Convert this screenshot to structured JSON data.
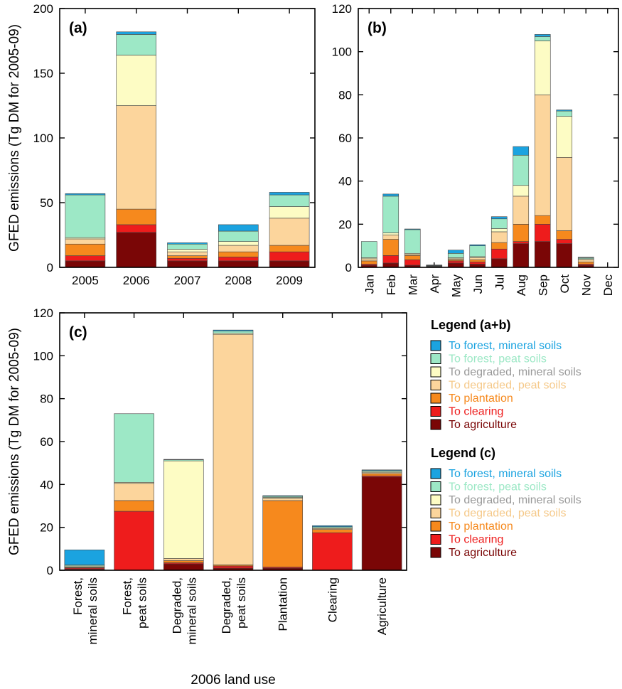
{
  "stack_order": [
    "To agriculture",
    "To clearing",
    "To plantation",
    "To degraded, peat soils",
    "To degraded, mineral soils",
    "To forest, peat soils",
    "To forest, mineral soils"
  ],
  "colors": {
    "To forest, mineral soils": "#1ba3e0",
    "To forest, peat soils": "#9de8c6",
    "To degraded, mineral soils": "#fdfcc4",
    "To degraded, peat soils": "#fcd59c",
    "To plantation": "#f6891d",
    "To clearing": "#ee1c1c",
    "To agriculture": "#7a0606"
  },
  "legend_text_colors": {
    "To forest, mineral soils": "#1ba3e0",
    "To forest, peat soils": "#9de8c6",
    "To degraded, mineral soils": "#999999",
    "To degraded, peat soils": "#f5c98a",
    "To plantation": "#f6891d",
    "To clearing": "#ee1c1c",
    "To agriculture": "#7a0606"
  },
  "legends": [
    {
      "title": "Legend (a+b)",
      "entries": [
        "To forest, mineral soils",
        "To forest, peat soils",
        "To degraded, mineral soils",
        "To degraded, peat soils",
        "To plantation",
        "To clearing",
        "To agriculture"
      ]
    },
    {
      "title": "Legend (c)",
      "entries": [
        "To forest, mineral soils",
        "To forest, peat soils",
        "To degraded, mineral soils",
        "To degraded, peat soils",
        "To plantation",
        "To clearing",
        "To agriculture"
      ]
    }
  ],
  "chart_data": [
    {
      "type": "bar",
      "stacked": true,
      "panel_label": "(a)",
      "ylabel": "GFED emissions (Tg DM for 2005-09)",
      "xlabel": "",
      "ylim": [
        0,
        200
      ],
      "yticks": [
        0,
        50,
        100,
        150,
        200
      ],
      "categories": [
        "2005",
        "2006",
        "2007",
        "2008",
        "2009"
      ],
      "series": [
        {
          "name": "To agriculture",
          "values": [
            5,
            27,
            5,
            5,
            5
          ]
        },
        {
          "name": "To clearing",
          "values": [
            4,
            6,
            2,
            3,
            7
          ]
        },
        {
          "name": "To plantation",
          "values": [
            9,
            12,
            2,
            4,
            5
          ]
        },
        {
          "name": "To degraded, peat soils",
          "values": [
            4,
            80,
            3,
            5,
            21
          ]
        },
        {
          "name": "To degraded, mineral soils",
          "values": [
            1,
            39,
            2,
            3,
            9
          ]
        },
        {
          "name": "To forest, peat soils",
          "values": [
            33,
            16,
            4,
            8,
            9
          ]
        },
        {
          "name": "To forest, mineral soils",
          "values": [
            1,
            2,
            1,
            5,
            2
          ]
        }
      ]
    },
    {
      "type": "bar",
      "stacked": true,
      "panel_label": "(b)",
      "ylabel": "",
      "xlabel": "",
      "ylim": [
        0,
        120
      ],
      "yticks": [
        0,
        20,
        40,
        60,
        80,
        100,
        120
      ],
      "categories": [
        "Jan",
        "Feb",
        "Mar",
        "Apr",
        "May",
        "Jun",
        "Jul",
        "Aug",
        "Sep",
        "Oct",
        "Nov",
        "Dec"
      ],
      "series": [
        {
          "name": "To agriculture",
          "values": [
            1,
            2,
            1,
            0.3,
            2,
            1.5,
            4,
            11,
            12,
            11,
            1,
            0
          ]
        },
        {
          "name": "To clearing",
          "values": [
            0.5,
            3.5,
            2.5,
            0.2,
            1,
            1,
            4.5,
            1,
            8,
            2,
            0.5,
            0
          ]
        },
        {
          "name": "To plantation",
          "values": [
            1.5,
            7.5,
            2,
            0.1,
            0.5,
            1,
            3,
            8,
            4,
            4,
            1,
            0
          ]
        },
        {
          "name": "To degraded, peat soils",
          "values": [
            1,
            2,
            0.5,
            0.1,
            0.5,
            1,
            5,
            13,
            56,
            34,
            1,
            0
          ]
        },
        {
          "name": "To degraded, mineral soils",
          "values": [
            0.5,
            1,
            0.5,
            0.1,
            0.5,
            0.5,
            1.5,
            5,
            25,
            19,
            0.5,
            0
          ]
        },
        {
          "name": "To forest, peat soils",
          "values": [
            7.5,
            17,
            11,
            0.2,
            2,
            5,
            4.5,
            14,
            2,
            2.5,
            0.5,
            0
          ]
        },
        {
          "name": "To forest, mineral soils",
          "values": [
            0,
            1,
            0.3,
            0.1,
            1.5,
            0.5,
            1,
            4,
            1,
            0.5,
            0.2,
            0
          ]
        }
      ]
    },
    {
      "type": "bar",
      "stacked": true,
      "panel_label": "(c)",
      "ylabel": "GFED emissions (Tg DM for 2005-09)",
      "xlabel": "2006 land use",
      "ylim": [
        0,
        120
      ],
      "yticks": [
        0,
        20,
        40,
        60,
        80,
        100,
        120
      ],
      "categories": [
        [
          "Forest,",
          "mineral soils"
        ],
        [
          "Forest,",
          "peat soils"
        ],
        [
          "Degraded,",
          "mineral soils"
        ],
        [
          "Degraded,",
          "peat soils"
        ],
        [
          "Plantation"
        ],
        [
          "Clearing"
        ],
        [
          "Agriculture"
        ]
      ],
      "series": [
        {
          "name": "To agriculture",
          "values": [
            0.5,
            0,
            3,
            1,
            1,
            0,
            43.5
          ]
        },
        {
          "name": "To clearing",
          "values": [
            0.5,
            27.5,
            0.5,
            1,
            0.5,
            17.5,
            0.5
          ]
        },
        {
          "name": "To plantation",
          "values": [
            0.3,
            5,
            1,
            0.5,
            31,
            1.5,
            1
          ]
        },
        {
          "name": "To degraded, peat soils",
          "values": [
            0.2,
            8,
            1,
            107.5,
            1,
            0.5,
            0.5
          ]
        },
        {
          "name": "To degraded, mineral soils",
          "values": [
            0.5,
            0.5,
            45.5,
            0.5,
            0.5,
            0.3,
            0.5
          ]
        },
        {
          "name": "To forest, peat soils",
          "values": [
            0.5,
            32,
            0.5,
            1,
            0.5,
            0.5,
            0.5
          ]
        },
        {
          "name": "To forest, mineral soils",
          "values": [
            7,
            0,
            0.2,
            0.5,
            0.3,
            0.5,
            0.3
          ]
        }
      ]
    }
  ]
}
